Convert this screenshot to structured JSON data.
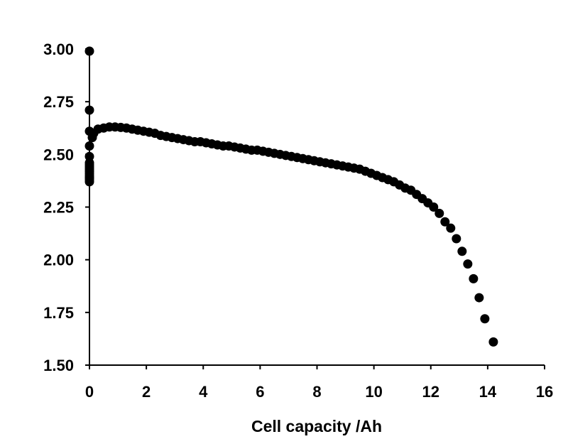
{
  "chart_data": {
    "type": "scatter",
    "title": "",
    "xlabel": "Cell capacity /Ah",
    "ylabel": "",
    "xlim": [
      0,
      16
    ],
    "ylim": [
      1.5,
      3.0
    ],
    "xticks": [
      "0",
      "2",
      "4",
      "6",
      "8",
      "10",
      "12",
      "14",
      "16"
    ],
    "yticks": [
      "1.50",
      "1.75",
      "2.00",
      "2.25",
      "2.50",
      "2.75",
      "3.00"
    ],
    "grid": false,
    "legend": "none",
    "marker_color": "#000000",
    "series": [
      {
        "x": [
          0,
          0,
          0,
          0,
          0,
          0,
          0,
          0,
          0,
          0,
          0,
          0,
          0,
          0,
          0,
          0,
          0.1,
          0.15,
          0.3,
          0.5,
          0.7,
          0.9,
          1.1,
          1.3,
          1.5,
          1.7,
          1.9,
          2.1,
          2.3,
          2.5,
          2.7,
          2.9,
          3.1,
          3.3,
          3.5,
          3.7,
          3.9,
          4.1,
          4.3,
          4.5,
          4.7,
          4.9,
          5.1,
          5.3,
          5.5,
          5.7,
          5.9,
          6.1,
          6.3,
          6.5,
          6.7,
          6.9,
          7.1,
          7.3,
          7.5,
          7.7,
          7.9,
          8.1,
          8.3,
          8.5,
          8.7,
          8.9,
          9.1,
          9.3,
          9.5,
          9.7,
          9.9,
          10.1,
          10.3,
          10.5,
          10.7,
          10.9,
          11.1,
          11.3,
          11.5,
          11.7,
          11.9,
          12.1,
          12.3,
          12.5,
          12.7,
          12.9,
          13.1,
          13.3,
          13.5,
          13.7,
          13.9,
          14.2
        ],
        "y": [
          2.99,
          2.71,
          2.61,
          2.54,
          2.49,
          2.46,
          2.45,
          2.44,
          2.43,
          2.42,
          2.41,
          2.4,
          2.39,
          2.38,
          2.37,
          2.39,
          2.58,
          2.6,
          2.62,
          2.625,
          2.63,
          2.63,
          2.628,
          2.625,
          2.62,
          2.615,
          2.61,
          2.605,
          2.6,
          2.59,
          2.585,
          2.58,
          2.575,
          2.57,
          2.565,
          2.56,
          2.56,
          2.555,
          2.55,
          2.545,
          2.54,
          2.54,
          2.535,
          2.53,
          2.525,
          2.52,
          2.52,
          2.515,
          2.51,
          2.505,
          2.5,
          2.495,
          2.49,
          2.485,
          2.48,
          2.475,
          2.47,
          2.465,
          2.46,
          2.455,
          2.45,
          2.445,
          2.44,
          2.435,
          2.43,
          2.42,
          2.41,
          2.4,
          2.39,
          2.38,
          2.37,
          2.355,
          2.34,
          2.33,
          2.31,
          2.29,
          2.27,
          2.25,
          2.22,
          2.18,
          2.15,
          2.1,
          2.04,
          1.98,
          1.91,
          1.82,
          1.72,
          1.61
        ]
      }
    ]
  }
}
